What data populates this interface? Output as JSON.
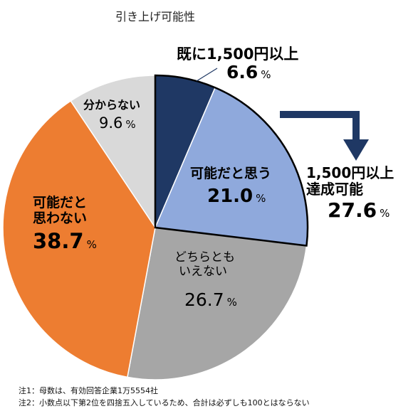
{
  "chart_data": {
    "type": "pie",
    "title": "引き上げ可能性",
    "unit": "%",
    "slices": [
      {
        "label": "既に1,500円以上",
        "value": 6.6,
        "color": "#1f3864"
      },
      {
        "label": "可能だと思う",
        "value": 21.0,
        "color": "#8fa9dc"
      },
      {
        "label": "どちらともいえない",
        "value": 26.7,
        "color": "#a6a6a6"
      },
      {
        "label": "可能だと思わない",
        "value": 38.7,
        "color": "#ed7d31"
      },
      {
        "label": "分からない",
        "value": 9.6,
        "color": "#d9d9d9"
      }
    ],
    "annotation": {
      "text_line1": "1,500円以上",
      "text_line2": "達成可能",
      "value": 27.6,
      "unit": "%",
      "arrow_color": "#1f3864"
    }
  },
  "labels": {
    "already_1": "既に1,500円以上",
    "already_v": "6.6",
    "think_1": "可能だと思う",
    "think_v": "21.0",
    "neither_1": "どちらとも",
    "neither_2": "いえない",
    "neither_v": "26.7",
    "not_1": "可能だと",
    "not_2": "思わない",
    "not_v": "38.7",
    "unknown_1": "分からない",
    "unknown_v": "9.6",
    "pct": "%"
  },
  "notes": [
    "注1：母数は、有効回答企業1万5554社",
    "注2：小数点以下第2位を四捨五入しているため、合計は必ずしも100とはならない"
  ]
}
